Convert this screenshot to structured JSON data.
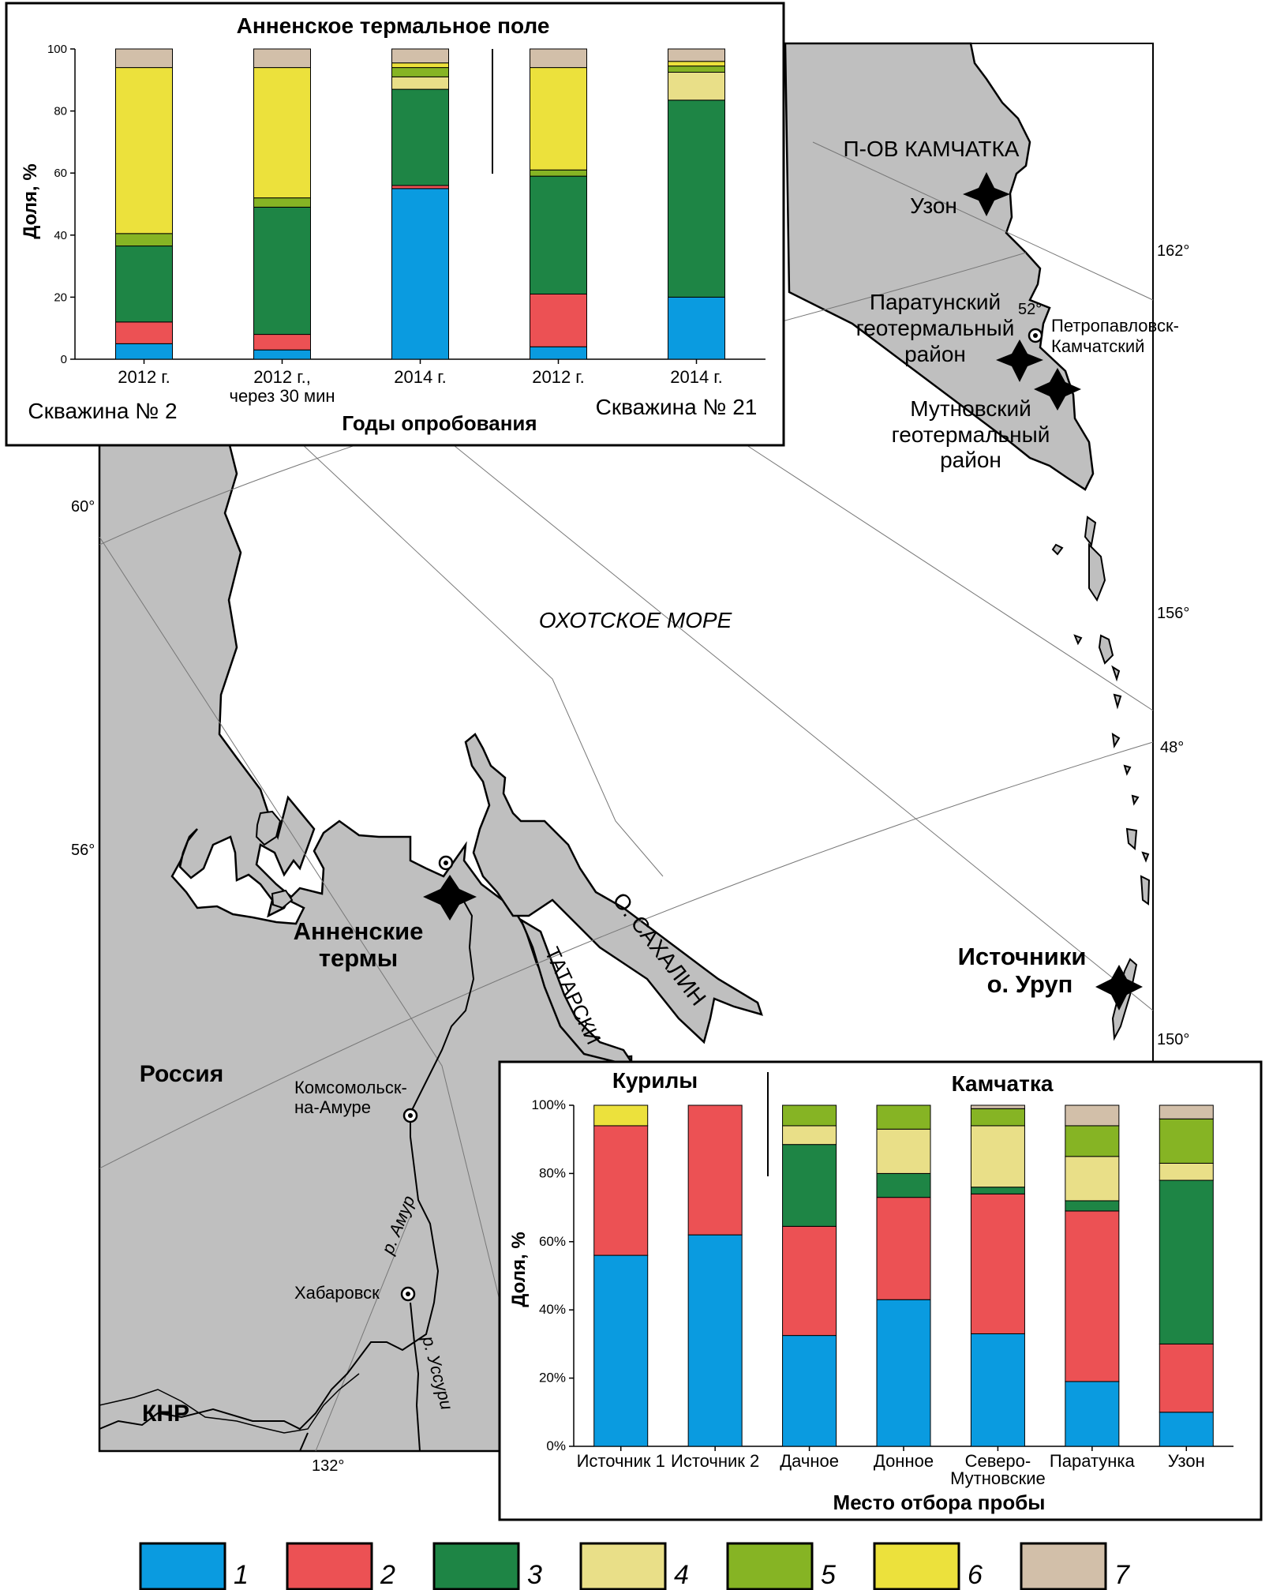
{
  "colors": {
    "1": "#0a9be0",
    "2": "#ec5154",
    "3": "#1e8545",
    "4": "#e9df88",
    "5": "#86b424",
    "6": "#ece13c",
    "7": "#d2bfa9",
    "land": "#bfbfbf",
    "sea": "#ffffff"
  },
  "map": {
    "labels": {
      "kamchatka": "П-ОВ КАМЧАТКА",
      "uzon": "Узон",
      "paratunka_1": "Паратунский",
      "paratunka_2": "геотермальный",
      "paratunka_3": "район",
      "petropavlovsk_1": "Петропавловск-",
      "petropavlovsk_2": "Камчатский",
      "mutnovsky_1": "Мутновский",
      "mutnovsky_2": "геотермальный",
      "mutnovsky_3": "район",
      "okhotsk": "ОХОТСКОЕ МОРЕ",
      "sakhalin": "О. САХАЛИН",
      "tatarsky": "ТАТАРСКИ",
      "annenskie_1": "Анненские",
      "annenskie_2": "термы",
      "russia": "Россия",
      "komsomolsk_1": "Комсомольск-",
      "komsomolsk_2": "на-Амуре",
      "amur": "р. Амур",
      "khabarovsk": "Хабаровск",
      "ussuri": "р. Уссури",
      "china": "КНР",
      "urup_1": "Источники",
      "urup_2": "о. Уруп"
    },
    "graticule": {
      "lat_60": "60°",
      "lat_56": "56°",
      "lat_52": "52°",
      "lat_48": "48°",
      "lon_162": "162°",
      "lon_156": "156°",
      "lon_150": "150°",
      "lon_132": "132°"
    }
  },
  "chart_data": [
    {
      "type": "bar",
      "stacked": true,
      "title": "Анненское термальное поле",
      "ylabel": "Доля, %",
      "xlabel": "Годы опробования",
      "ylim": [
        0,
        100
      ],
      "yticks": [
        0,
        20,
        40,
        60,
        80,
        100
      ],
      "groups": [
        "Скважина № 2",
        "Скважина № 21"
      ],
      "categories": [
        "2012 г.",
        "2012 г., через 30 мин",
        "2014 г.",
        "2012 г.",
        "2014 г."
      ],
      "category_lines": [
        [
          "2012 г."
        ],
        [
          "2012 г.,",
          "через 30 мин"
        ],
        [
          "2014 г."
        ],
        [
          "2012 г."
        ],
        [
          "2014 г."
        ]
      ],
      "series": [
        {
          "name": "1",
          "values": [
            5,
            3,
            55,
            4,
            20
          ]
        },
        {
          "name": "2",
          "values": [
            7,
            5,
            1,
            17,
            0
          ]
        },
        {
          "name": "3",
          "values": [
            24.5,
            41,
            31,
            38,
            63.5
          ]
        },
        {
          "name": "4",
          "values": [
            0,
            0,
            4,
            0,
            9
          ]
        },
        {
          "name": "5",
          "values": [
            4,
            3,
            3,
            2,
            2
          ]
        },
        {
          "name": "6",
          "values": [
            53.5,
            42,
            1.5,
            33,
            1.5
          ]
        },
        {
          "name": "7",
          "values": [
            6,
            6,
            4.5,
            6,
            4
          ]
        }
      ]
    },
    {
      "type": "bar",
      "stacked": true,
      "title": "",
      "group_labels": [
        "Курилы",
        "Камчатка"
      ],
      "ylabel": "Доля, %",
      "xlabel": "Место отбора пробы",
      "ylim": [
        0,
        100
      ],
      "yticks": [
        "0%",
        "20%",
        "40%",
        "60%",
        "80%",
        "100%"
      ],
      "categories": [
        "Источник 1",
        "Источник 2",
        "Дачное",
        "Донное",
        "Северо-Мутновские",
        "Паратунка",
        "Узон"
      ],
      "category_lines": [
        [
          "Источник 1"
        ],
        [
          "Источник 2"
        ],
        [
          "Дачное"
        ],
        [
          "Донное"
        ],
        [
          "Северо-",
          "Мутновские"
        ],
        [
          "Паратунка"
        ],
        [
          "Узон"
        ]
      ],
      "series": [
        {
          "name": "1",
          "values": [
            56,
            62,
            32.5,
            43,
            33,
            19,
            10
          ]
        },
        {
          "name": "2",
          "values": [
            38,
            38,
            32,
            30,
            41,
            50,
            20
          ]
        },
        {
          "name": "3",
          "values": [
            0,
            0,
            24,
            7,
            2,
            3,
            48
          ]
        },
        {
          "name": "4",
          "values": [
            0,
            0,
            5.5,
            13,
            18,
            13,
            5
          ]
        },
        {
          "name": "5",
          "values": [
            0,
            0,
            6,
            7,
            5,
            9,
            13
          ]
        },
        {
          "name": "6",
          "values": [
            6,
            0,
            0,
            0,
            0,
            0,
            0
          ]
        },
        {
          "name": "7",
          "values": [
            0,
            0,
            0,
            0,
            1,
            6,
            4
          ]
        }
      ]
    }
  ],
  "legend": [
    {
      "key": "1",
      "label": "1"
    },
    {
      "key": "2",
      "label": "2"
    },
    {
      "key": "3",
      "label": "3"
    },
    {
      "key": "4",
      "label": "4"
    },
    {
      "key": "5",
      "label": "5"
    },
    {
      "key": "6",
      "label": "6"
    },
    {
      "key": "7",
      "label": "7"
    }
  ]
}
